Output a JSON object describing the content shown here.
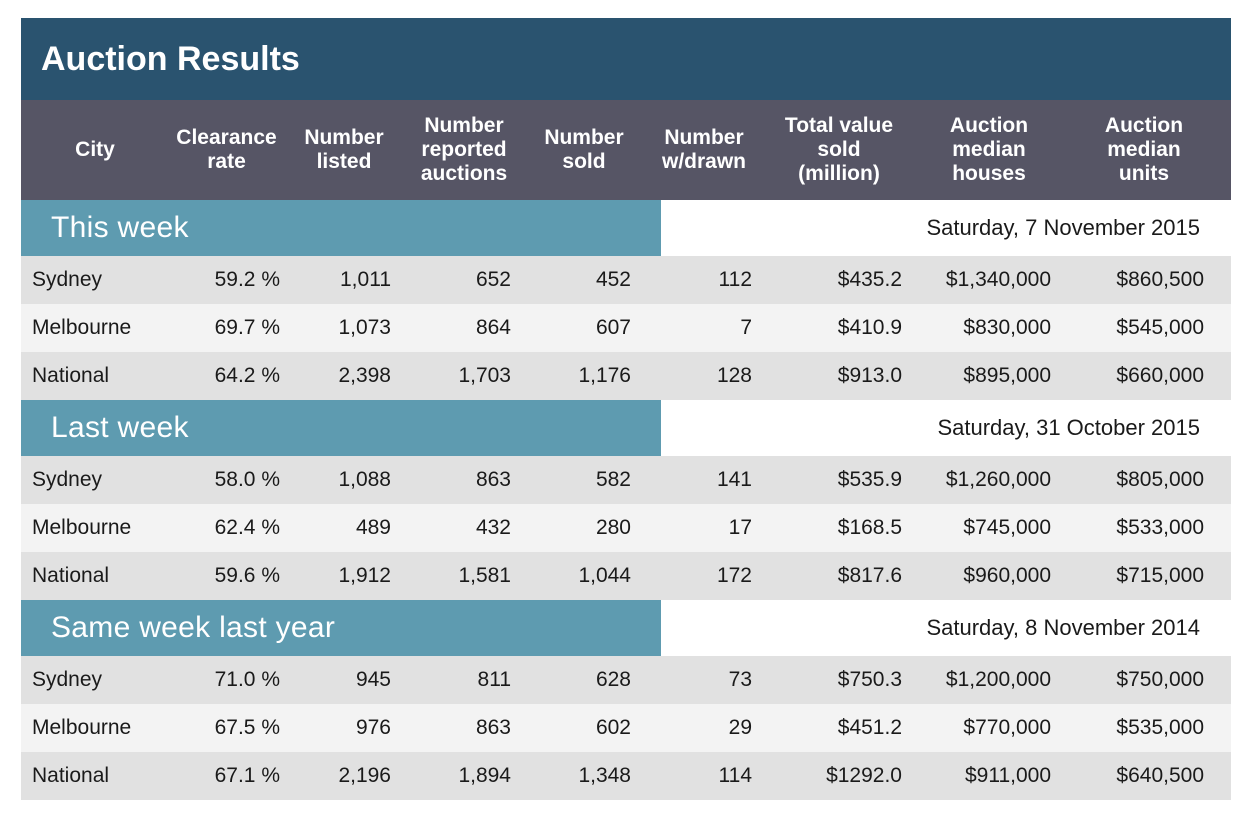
{
  "title": "Auction Results",
  "columns": [
    "City",
    "Clearance\nrate",
    "Number\nlisted",
    "Number\nreported\nauctions",
    "Number\nsold",
    "Number\nw/drawn",
    "Total value\nsold\n(million)",
    "Auction\nmedian\nhouses",
    "Auction\nmedian\nunits"
  ],
  "sections": [
    {
      "label": "This week",
      "date": "Saturday, 7 November 2015",
      "rows": [
        [
          "Sydney",
          "59.2 %",
          "1,011",
          "652",
          "452",
          "112",
          "$435.2",
          "$1,340,000",
          "$860,500"
        ],
        [
          "Melbourne",
          "69.7 %",
          "1,073",
          "864",
          "607",
          "7",
          "$410.9",
          "$830,000",
          "$545,000"
        ],
        [
          "National",
          "64.2 %",
          "2,398",
          "1,703",
          "1,176",
          "128",
          "$913.0",
          "$895,000",
          "$660,000"
        ]
      ]
    },
    {
      "label": "Last week",
      "date": "Saturday, 31 October 2015",
      "rows": [
        [
          "Sydney",
          "58.0 %",
          "1,088",
          "863",
          "582",
          "141",
          "$535.9",
          "$1,260,000",
          "$805,000"
        ],
        [
          "Melbourne",
          "62.4 %",
          "489",
          "432",
          "280",
          "17",
          "$168.5",
          "$745,000",
          "$533,000"
        ],
        [
          "National",
          "59.6 %",
          "1,912",
          "1,581",
          "1,044",
          "172",
          "$817.6",
          "$960,000",
          "$715,000"
        ]
      ]
    },
    {
      "label": "Same week last year",
      "date": "Saturday, 8 November 2014",
      "rows": [
        [
          "Sydney",
          "71.0 %",
          "945",
          "811",
          "628",
          "73",
          "$750.3",
          "$1,200,000",
          "$750,000"
        ],
        [
          "Melbourne",
          "67.5 %",
          "976",
          "863",
          "602",
          "29",
          "$451.2",
          "$770,000",
          "$535,000"
        ],
        [
          "National",
          "67.1 %",
          "2,196",
          "1,894",
          "1,348",
          "114",
          "$1292.0",
          "$911,000",
          "$640,500"
        ]
      ]
    }
  ]
}
